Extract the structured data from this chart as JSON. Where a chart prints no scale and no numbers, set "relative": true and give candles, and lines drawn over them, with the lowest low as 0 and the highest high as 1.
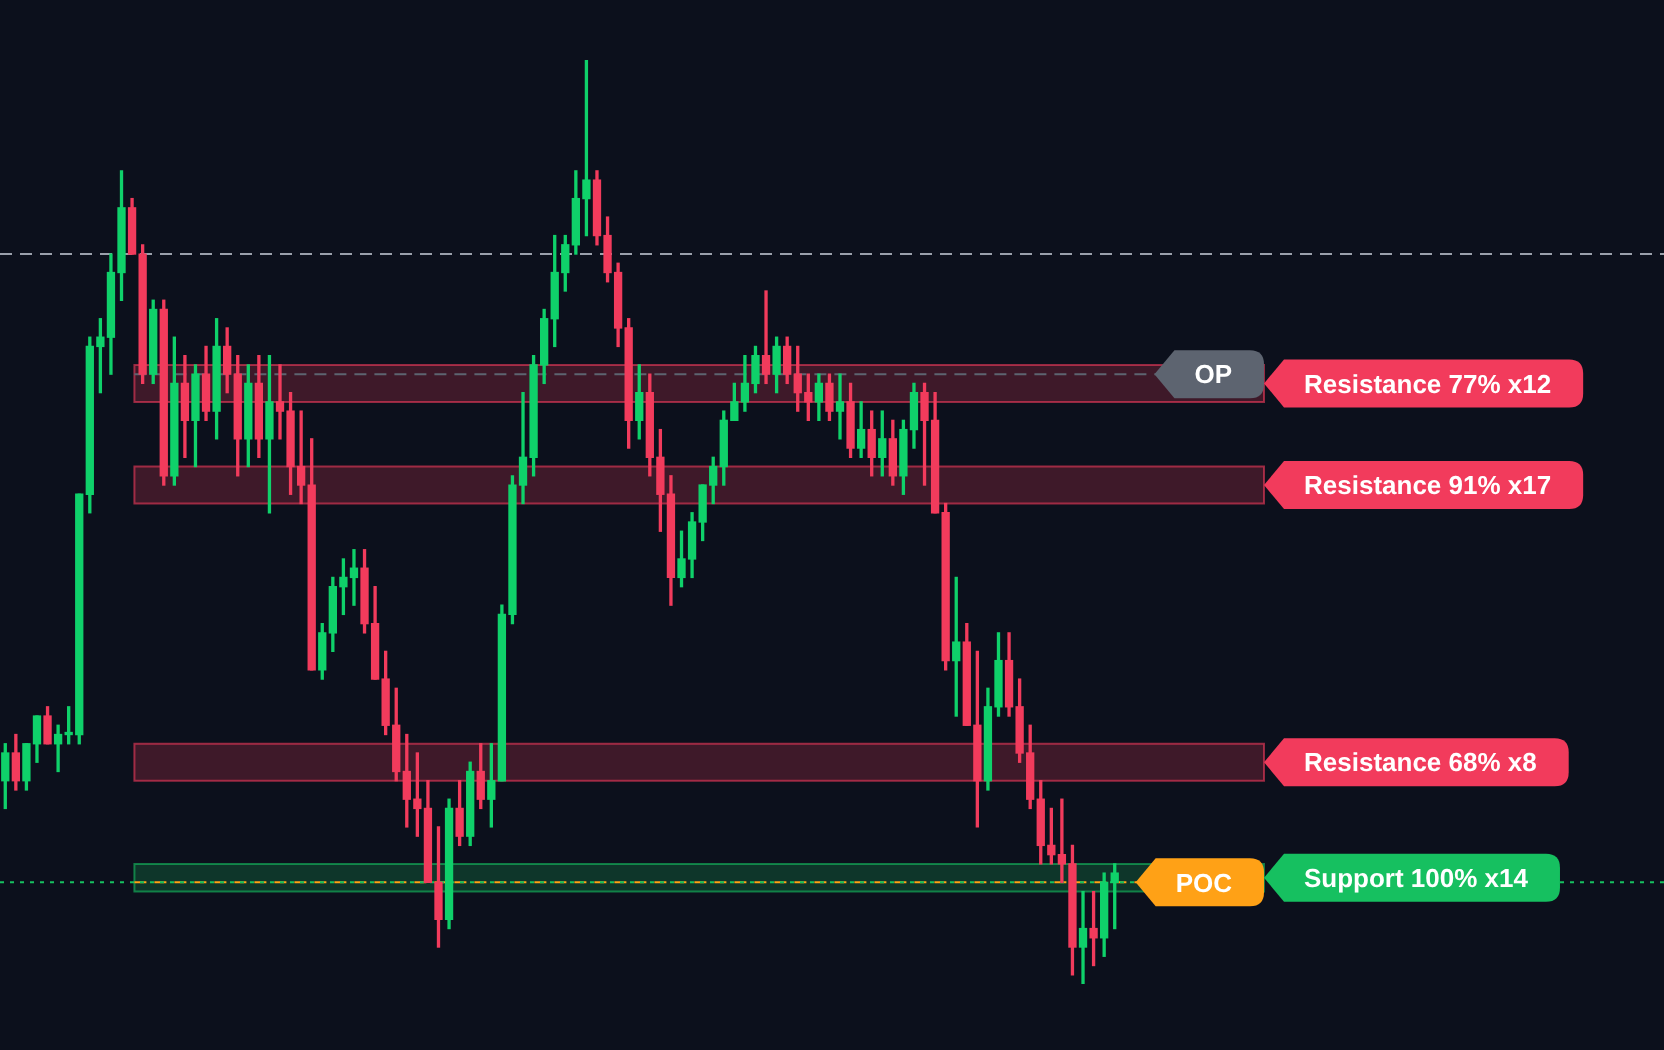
{
  "chart_data": {
    "type": "candlestick",
    "relative": true,
    "tick_labels": false,
    "categories": [
      null,
      null,
      null,
      null,
      null,
      null,
      null,
      null,
      null,
      null,
      null,
      null,
      null,
      null,
      null,
      null,
      null,
      null,
      null,
      null,
      null,
      null,
      null,
      null,
      null,
      null,
      null,
      null,
      null,
      null,
      null,
      null,
      null,
      null,
      null,
      null,
      null,
      null,
      null,
      null,
      null,
      null,
      null,
      null,
      null,
      null,
      null,
      null,
      null,
      null,
      null,
      null,
      null,
      null,
      null,
      null,
      null,
      null,
      null,
      null,
      null,
      null,
      null,
      null,
      null,
      null,
      null,
      null,
      null,
      null,
      null,
      null,
      null,
      null,
      null,
      null,
      null,
      null,
      null,
      null,
      null,
      null,
      null,
      null,
      null,
      null,
      null,
      null,
      null,
      null,
      null,
      null,
      null,
      null,
      null,
      null,
      null,
      null,
      null,
      null,
      null,
      null,
      null,
      null,
      null,
      null
    ],
    "ohlc": [
      [
        0.22,
        0.26,
        0.19,
        0.25
      ],
      [
        0.25,
        0.27,
        0.21,
        0.22
      ],
      [
        0.22,
        0.26,
        0.21,
        0.26
      ],
      [
        0.26,
        0.29,
        0.24,
        0.29
      ],
      [
        0.29,
        0.3,
        0.26,
        0.26
      ],
      [
        0.26,
        0.28,
        0.23,
        0.27
      ],
      [
        0.27,
        0.3,
        0.26,
        0.27
      ],
      [
        0.27,
        0.53,
        0.26,
        0.53
      ],
      [
        0.53,
        0.7,
        0.51,
        0.69
      ],
      [
        0.69,
        0.72,
        0.64,
        0.7
      ],
      [
        0.7,
        0.79,
        0.66,
        0.77
      ],
      [
        0.77,
        0.88,
        0.74,
        0.84
      ],
      [
        0.84,
        0.85,
        0.79,
        0.79
      ],
      [
        0.79,
        0.8,
        0.65,
        0.66
      ],
      [
        0.66,
        0.74,
        0.65,
        0.73
      ],
      [
        0.73,
        0.74,
        0.54,
        0.55
      ],
      [
        0.55,
        0.7,
        0.54,
        0.65
      ],
      [
        0.65,
        0.68,
        0.57,
        0.61
      ],
      [
        0.61,
        0.67,
        0.56,
        0.66
      ],
      [
        0.66,
        0.69,
        0.61,
        0.62
      ],
      [
        0.62,
        0.72,
        0.59,
        0.69
      ],
      [
        0.69,
        0.71,
        0.64,
        0.66
      ],
      [
        0.66,
        0.68,
        0.55,
        0.59
      ],
      [
        0.59,
        0.67,
        0.56,
        0.65
      ],
      [
        0.65,
        0.68,
        0.57,
        0.59
      ],
      [
        0.59,
        0.68,
        0.51,
        0.63
      ],
      [
        0.63,
        0.67,
        0.59,
        0.62
      ],
      [
        0.62,
        0.64,
        0.53,
        0.56
      ],
      [
        0.56,
        0.62,
        0.52,
        0.54
      ],
      [
        0.54,
        0.59,
        0.34,
        0.34
      ],
      [
        0.34,
        0.39,
        0.33,
        0.38
      ],
      [
        0.38,
        0.44,
        0.36,
        0.43
      ],
      [
        0.43,
        0.46,
        0.4,
        0.44
      ],
      [
        0.44,
        0.47,
        0.41,
        0.45
      ],
      [
        0.45,
        0.47,
        0.38,
        0.39
      ],
      [
        0.39,
        0.43,
        0.33,
        0.33
      ],
      [
        0.33,
        0.36,
        0.27,
        0.28
      ],
      [
        0.28,
        0.32,
        0.22,
        0.23
      ],
      [
        0.23,
        0.27,
        0.17,
        0.2
      ],
      [
        0.2,
        0.25,
        0.16,
        0.19
      ],
      [
        0.19,
        0.22,
        0.11,
        0.11
      ],
      [
        0.11,
        0.17,
        0.04,
        0.07
      ],
      [
        0.07,
        0.2,
        0.06,
        0.19
      ],
      [
        0.19,
        0.22,
        0.15,
        0.16
      ],
      [
        0.16,
        0.24,
        0.15,
        0.23
      ],
      [
        0.23,
        0.26,
        0.19,
        0.2
      ],
      [
        0.2,
        0.26,
        0.17,
        0.22
      ],
      [
        0.22,
        0.41,
        0.22,
        0.4
      ],
      [
        0.4,
        0.55,
        0.39,
        0.54
      ],
      [
        0.54,
        0.64,
        0.52,
        0.57
      ],
      [
        0.57,
        0.68,
        0.55,
        0.67
      ],
      [
        0.67,
        0.73,
        0.65,
        0.72
      ],
      [
        0.72,
        0.81,
        0.69,
        0.77
      ],
      [
        0.77,
        0.81,
        0.75,
        0.8
      ],
      [
        0.8,
        0.88,
        0.79,
        0.85
      ],
      [
        0.85,
        1,
        0.81,
        0.87
      ],
      [
        0.87,
        0.88,
        0.8,
        0.81
      ],
      [
        0.81,
        0.83,
        0.76,
        0.77
      ],
      [
        0.77,
        0.78,
        0.69,
        0.71
      ],
      [
        0.71,
        0.72,
        0.58,
        0.61
      ],
      [
        0.61,
        0.67,
        0.59,
        0.64
      ],
      [
        0.64,
        0.66,
        0.55,
        0.57
      ],
      [
        0.57,
        0.6,
        0.49,
        0.53
      ],
      [
        0.53,
        0.55,
        0.41,
        0.44
      ],
      [
        0.44,
        0.49,
        0.43,
        0.46
      ],
      [
        0.46,
        0.51,
        0.44,
        0.5
      ],
      [
        0.5,
        0.54,
        0.48,
        0.54
      ],
      [
        0.54,
        0.57,
        0.52,
        0.56
      ],
      [
        0.56,
        0.62,
        0.54,
        0.61
      ],
      [
        0.61,
        0.65,
        0.61,
        0.63
      ],
      [
        0.63,
        0.68,
        0.62,
        0.65
      ],
      [
        0.65,
        0.69,
        0.64,
        0.68
      ],
      [
        0.68,
        0.75,
        0.65,
        0.66
      ],
      [
        0.66,
        0.7,
        0.64,
        0.69
      ],
      [
        0.69,
        0.7,
        0.65,
        0.66
      ],
      [
        0.66,
        0.69,
        0.62,
        0.64
      ],
      [
        0.64,
        0.66,
        0.61,
        0.63
      ],
      [
        0.63,
        0.66,
        0.61,
        0.65
      ],
      [
        0.65,
        0.66,
        0.61,
        0.62
      ],
      [
        0.62,
        0.66,
        0.59,
        0.63
      ],
      [
        0.63,
        0.65,
        0.57,
        0.58
      ],
      [
        0.58,
        0.63,
        0.57,
        0.6
      ],
      [
        0.6,
        0.62,
        0.55,
        0.57
      ],
      [
        0.57,
        0.62,
        0.55,
        0.59
      ],
      [
        0.59,
        0.61,
        0.54,
        0.55
      ],
      [
        0.55,
        0.61,
        0.53,
        0.6
      ],
      [
        0.6,
        0.65,
        0.58,
        0.64
      ],
      [
        0.64,
        0.65,
        0.54,
        0.61
      ],
      [
        0.61,
        0.64,
        0.51,
        0.51
      ],
      [
        0.51,
        0.52,
        0.34,
        0.35
      ],
      [
        0.35,
        0.44,
        0.29,
        0.37
      ],
      [
        0.37,
        0.39,
        0.28,
        0.28
      ],
      [
        0.28,
        0.36,
        0.17,
        0.22
      ],
      [
        0.22,
        0.32,
        0.21,
        0.3
      ],
      [
        0.3,
        0.38,
        0.29,
        0.35
      ],
      [
        0.35,
        0.38,
        0.29,
        0.3
      ],
      [
        0.3,
        0.33,
        0.24,
        0.25
      ],
      [
        0.25,
        0.28,
        0.19,
        0.2
      ],
      [
        0.2,
        0.22,
        0.13,
        0.15
      ],
      [
        0.15,
        0.19,
        0.13,
        0.14
      ],
      [
        0.14,
        0.2,
        0.11,
        0.13
      ],
      [
        0.13,
        0.15,
        0.01,
        0.04
      ],
      [
        0.04,
        0.1,
        0,
        0.06
      ],
      [
        0.06,
        0.1,
        0.02,
        0.05
      ],
      [
        0.05,
        0.12,
        0.03,
        0.11
      ],
      [
        0.11,
        0.13,
        0.06,
        0.12
      ]
    ],
    "bands": [
      {
        "axis": "y",
        "from": 0.63,
        "to": 0.67,
        "label": "Resistance 77% x12",
        "color": "#f23b5c"
      },
      {
        "axis": "y",
        "from": 0.52,
        "to": 0.56,
        "label": "Resistance 91% x17",
        "color": "#f23b5c"
      },
      {
        "axis": "y",
        "from": 0.22,
        "to": 0.26,
        "label": "Resistance 68% x8",
        "color": "#f23b5c"
      },
      {
        "axis": "y",
        "from": 0.1,
        "to": 0.13,
        "label": "Support 100% x14",
        "color": "#16c060"
      }
    ],
    "ref_lines": [
      {
        "axis": "y",
        "value": 0.66,
        "label": "OP",
        "color": "#5d6470",
        "line_style": "dashed"
      },
      {
        "axis": "y",
        "value": 0.11,
        "label": "POC",
        "color": "#ffa116",
        "line_style": "dashed"
      },
      {
        "axis": "y",
        "value": 0.11,
        "color": "#16c060",
        "line_style": "dotted"
      },
      {
        "axis": "y",
        "value": 0.79,
        "color": "#9aa0ab",
        "line_style": "dashed"
      }
    ]
  }
}
